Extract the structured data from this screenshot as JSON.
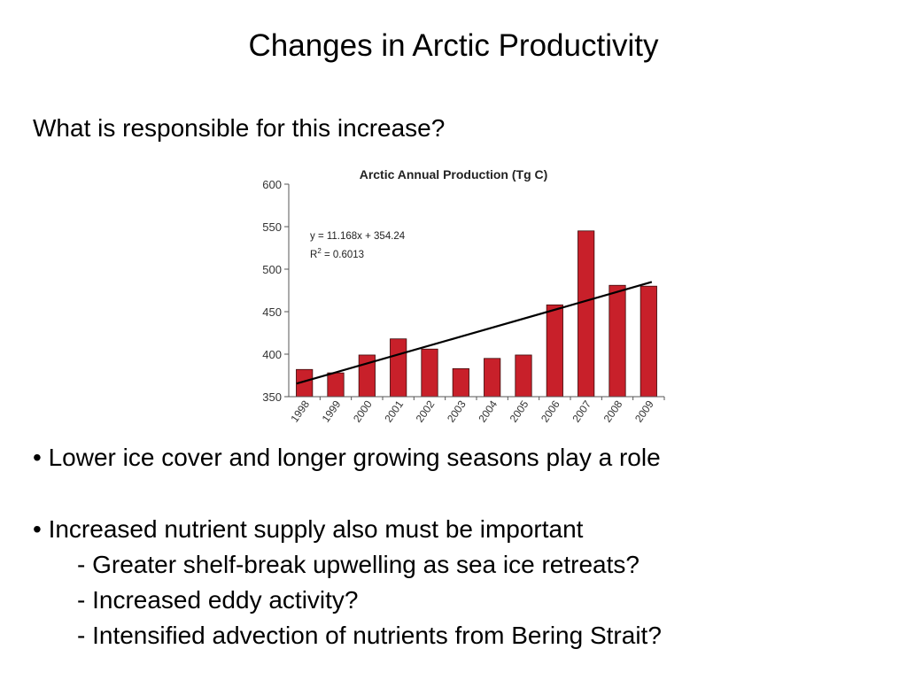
{
  "slide": {
    "title": "Changes in Arctic Productivity",
    "question": "What is responsible for this increase?"
  },
  "chart_data": {
    "type": "bar",
    "title": "Arctic Annual Production (Tg C)",
    "categories": [
      "1998",
      "1999",
      "2000",
      "2001",
      "2002",
      "2003",
      "2004",
      "2005",
      "2006",
      "2007",
      "2008",
      "2009"
    ],
    "values": [
      382,
      378,
      399,
      418,
      406,
      383,
      395,
      399,
      458,
      545,
      481,
      480
    ],
    "ylim": [
      350,
      600
    ],
    "yticks": [
      "600",
      "550",
      "500",
      "450",
      "400",
      "350"
    ],
    "bar_color": "#c8202a",
    "trendline": {
      "slope": 11.168,
      "intercept": 354.24,
      "equation": "y = 11.168x + 354.24",
      "r2_label": "R",
      "r2_sup": "2",
      "r2_value": " = 0.6013"
    },
    "grid": false,
    "legend": "none"
  },
  "bullets": [
    {
      "text": "• Lower ice cover and longer growing seasons play a role",
      "subs": []
    },
    {
      "text": "• Increased nutrient supply also must be important",
      "subs": [
        "- Greater shelf-break upwelling as sea ice retreats?",
        "- Increased eddy activity?",
        "- Intensified advection of nutrients from Bering Strait?"
      ]
    }
  ]
}
